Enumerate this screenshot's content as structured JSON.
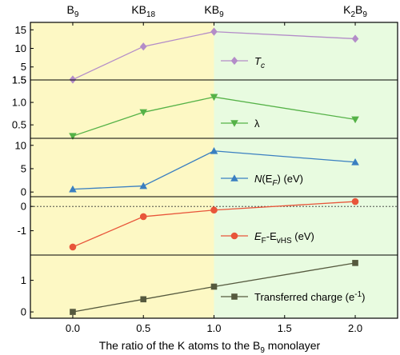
{
  "colors": {
    "yellow_region": "#fdf8c4",
    "green_region": "#e8fbe0",
    "Tc": "#b38cc8",
    "lambda": "#55b247",
    "NEF": "#3a7fc1",
    "EF_EvHS": "#e8553a",
    "charge": "#55593e"
  },
  "chart_data": {
    "type": "line",
    "x": [
      0.0,
      0.5,
      1.0,
      2.0
    ],
    "xlim": [
      -0.3,
      2.3
    ],
    "xticks": [
      "0.0",
      "0.5",
      "1.0",
      "1.5",
      "2.0"
    ],
    "xlabel_parts": {
      "prefix": "The ratio of the K atoms to the B",
      "sub": "9",
      "suffix": " monolayer"
    },
    "top_labels": [
      {
        "x": 0.0,
        "main": "B",
        "sub": "9",
        "tail_main": "",
        "tail_sub": ""
      },
      {
        "x": 0.5,
        "main": "KB",
        "sub": "18",
        "tail_main": "",
        "tail_sub": ""
      },
      {
        "x": 1.0,
        "main": "KB",
        "sub": "9",
        "tail_main": "",
        "tail_sub": ""
      },
      {
        "x": 2.0,
        "main": "K",
        "sub": "2",
        "tail_main": "B",
        "tail_sub": "9"
      }
    ],
    "shading": {
      "yellow_until": 1.0
    },
    "panels": [
      {
        "key": "Tc",
        "values": [
          1.6,
          10.5,
          14.5,
          12.6
        ],
        "ylim": [
          1.5,
          17
        ],
        "yticks": [
          "1.5",
          "5",
          "10",
          "15"
        ],
        "ytick_values": [
          1.5,
          5,
          10,
          15
        ],
        "marker": "diamond",
        "legend": {
          "main": "T",
          "sub": "c",
          "rest": ""
        }
      },
      {
        "key": "lambda",
        "values": [
          0.25,
          0.78,
          1.12,
          0.62
        ],
        "ylim": [
          0.2,
          1.5
        ],
        "yticks": [
          "0.5",
          "1.0",
          "1.5"
        ],
        "ytick_values": [
          0.5,
          1.0,
          1.5
        ],
        "marker": "triangle-down",
        "legend": {
          "main": "λ",
          "sub": "",
          "rest": ""
        }
      },
      {
        "key": "NEF",
        "values": [
          0.6,
          1.3,
          8.8,
          6.4
        ],
        "ylim": [
          -1,
          11.5
        ],
        "yticks": [
          "0",
          "5",
          "10"
        ],
        "ytick_values": [
          0,
          5,
          10
        ],
        "marker": "triangle-up",
        "legend": {
          "main": "N(E",
          "sub": "F",
          "rest": ") (eV)"
        }
      },
      {
        "key": "EF_EvHS",
        "values": [
          -1.67,
          -0.42,
          -0.15,
          0.2
        ],
        "ylim": [
          -2,
          0.4
        ],
        "yticks": [
          "0",
          "-1"
        ],
        "ytick_values": [
          0,
          -1
        ],
        "marker": "circle",
        "dashed_zero": true,
        "legend": {
          "main": "E",
          "sub": "F",
          "rest": "-E",
          "sub2": "vHS",
          "rest2": " (eV)"
        }
      },
      {
        "key": "charge",
        "values": [
          0.0,
          0.4,
          0.8,
          1.55
        ],
        "ylim": [
          -0.2,
          1.8
        ],
        "yticks": [
          "0",
          "1"
        ],
        "ytick_values": [
          0,
          1
        ],
        "marker": "square",
        "legend": {
          "main": "Transferred charge (e",
          "sup": "-1",
          "rest": ")"
        }
      }
    ]
  }
}
